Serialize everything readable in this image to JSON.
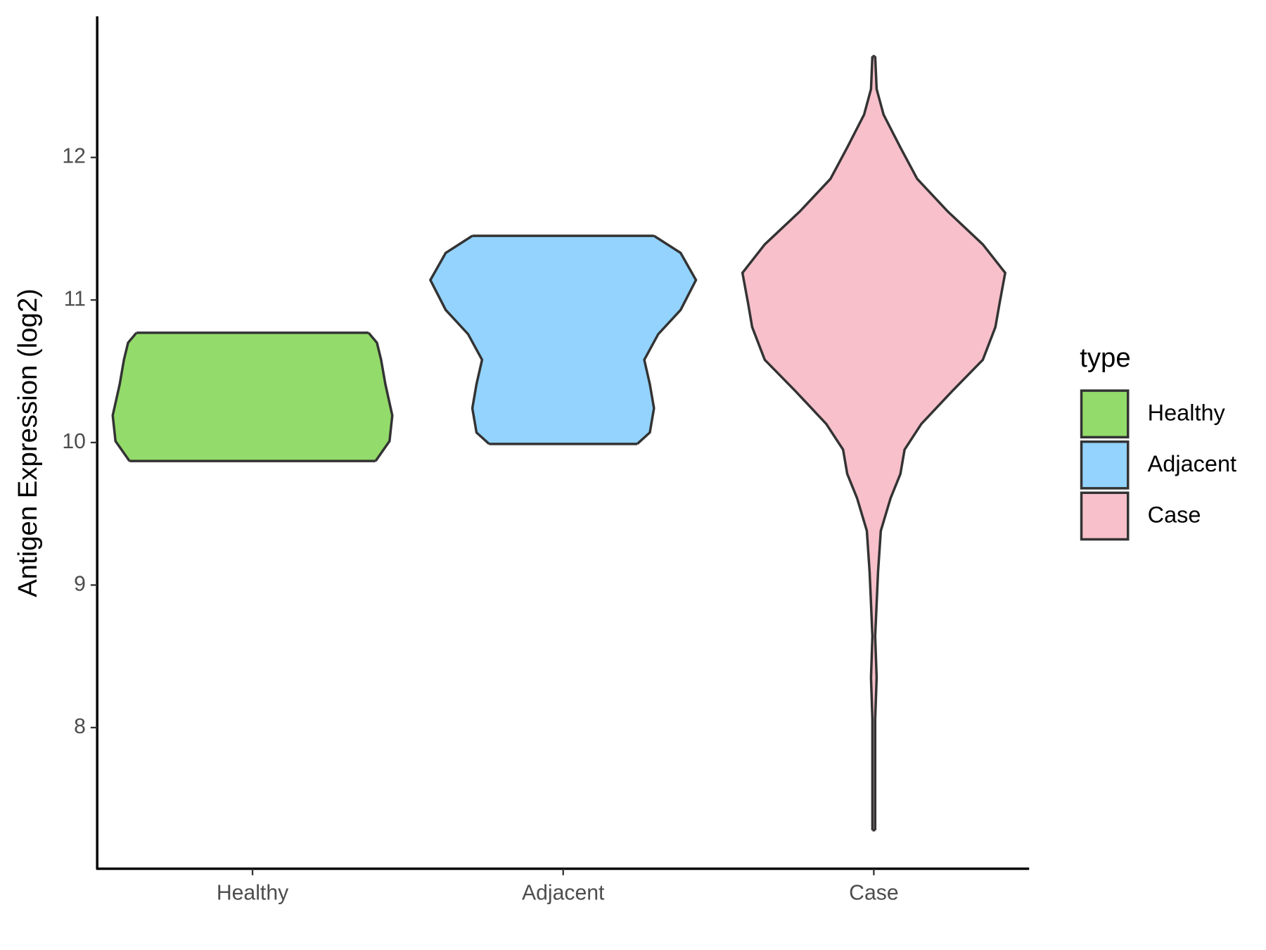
{
  "chart_data": {
    "type": "violin",
    "y_label": "Antigen Expression (log2)",
    "legend_title": "type",
    "legend": "right",
    "categories": [
      "Healthy",
      "Adjacent",
      "Case"
    ],
    "ylim": [
      7.01,
      12.99
    ],
    "yticks": [
      8,
      9,
      10,
      11,
      12
    ],
    "series": [
      {
        "name": "Healthy",
        "color": "#93DB6A",
        "y": [
          9.87,
          10.01,
          10.19,
          10.41,
          10.58,
          10.7,
          10.77
        ],
        "density": [
          0.88,
          0.98,
          1.0,
          0.95,
          0.92,
          0.89,
          0.83
        ]
      },
      {
        "name": "Adjacent",
        "color": "#93D3FD",
        "y": [
          9.99,
          10.07,
          10.24,
          10.41,
          10.58,
          10.76,
          10.93,
          11.14,
          11.33,
          11.45
        ],
        "density": [
          0.53,
          0.62,
          0.65,
          0.62,
          0.58,
          0.68,
          0.84,
          0.95,
          0.84,
          0.65
        ]
      },
      {
        "name": "Case",
        "color": "#F7C0CB",
        "y": [
          7.28,
          7.66,
          8.06,
          8.35,
          8.64,
          8.87,
          9.09,
          9.38,
          9.61,
          9.78,
          9.95,
          10.13,
          10.36,
          10.58,
          10.81,
          10.98,
          11.19,
          11.39,
          11.62,
          11.85,
          12.07,
          12.3,
          12.48,
          12.71
        ],
        "density": [
          0.01,
          0.01,
          0.01,
          0.02,
          0.01,
          0.02,
          0.03,
          0.05,
          0.12,
          0.19,
          0.22,
          0.34,
          0.56,
          0.78,
          0.87,
          0.9,
          0.94,
          0.78,
          0.53,
          0.31,
          0.19,
          0.07,
          0.02,
          0.01
        ]
      }
    ]
  }
}
